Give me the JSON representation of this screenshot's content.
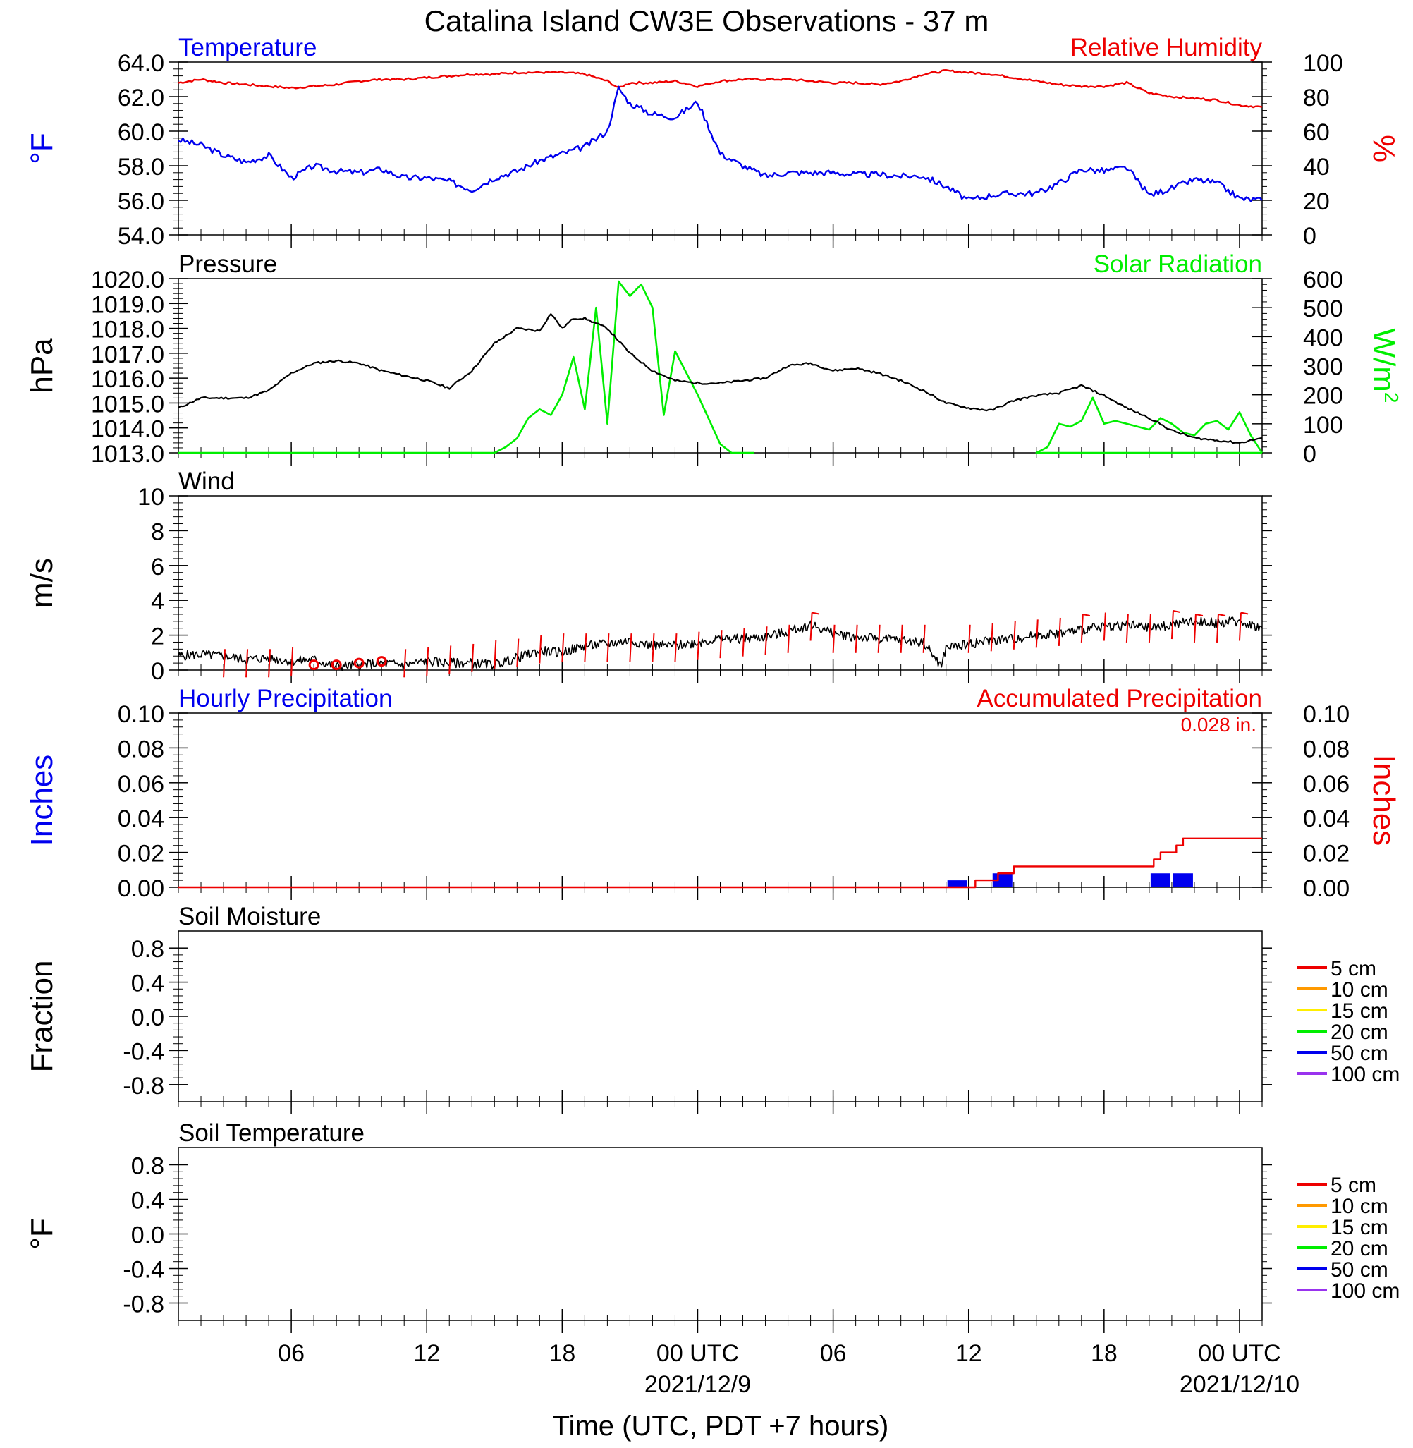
{
  "title": "Catalina Island CW3E Observations - 37 m",
  "xlabel": "Time (UTC, PDT +7 hours)",
  "colors": {
    "temperature": "#0000ee",
    "humidity": "#ee0000",
    "pressure": "#000000",
    "solar": "#00ee00",
    "wind": "#000000",
    "wind_barb": "#ee0000",
    "hourly_precip": "#0000ee",
    "accum_precip": "#ee0000"
  },
  "chart_data": [
    {
      "type": "line",
      "panel": "temperature-humidity",
      "left_title": "Temperature",
      "right_title": "Relative Humidity",
      "ylabel_left": "°F",
      "ylabel_right": "%",
      "ylim_left": [
        54,
        64
      ],
      "ylim_right": [
        0,
        100
      ],
      "yticks_left": [
        "54.0",
        "56.0",
        "58.0",
        "60.0",
        "62.0",
        "64.0"
      ],
      "yticks_right": [
        "0",
        "20",
        "40",
        "60",
        "80",
        "100"
      ],
      "x_hours": [
        0,
        1,
        2,
        3,
        4,
        5,
        6,
        7,
        8,
        9,
        10,
        11,
        12,
        13,
        14,
        15,
        16,
        17,
        18,
        19,
        19.5,
        20,
        21,
        22,
        23,
        24,
        25,
        26,
        27,
        28,
        29,
        30,
        31,
        32,
        33,
        34,
        35,
        36,
        37,
        38,
        39,
        40,
        41,
        42,
        43,
        44,
        45,
        46,
        47,
        48
      ],
      "series": [
        {
          "name": "Temperature",
          "axis": "left",
          "values": [
            59.5,
            59.2,
            58.6,
            58.2,
            58.6,
            57.3,
            58.0,
            57.7,
            57.6,
            57.8,
            57.3,
            57.3,
            57.1,
            56.6,
            57.3,
            57.7,
            58.3,
            58.7,
            59.1,
            60.0,
            62.5,
            61.6,
            61.0,
            60.8,
            61.7,
            58.7,
            58.0,
            57.4,
            57.6,
            57.6,
            57.6,
            57.5,
            57.5,
            57.4,
            57.4,
            56.8,
            56.0,
            56.3,
            56.4,
            56.4,
            57.0,
            57.8,
            57.7,
            57.9,
            56.3,
            56.7,
            57.2,
            57.0,
            56.1,
            56.0
          ]
        },
        {
          "name": "Relative Humidity",
          "axis": "right",
          "values": [
            88,
            90,
            88,
            87,
            86,
            85,
            86,
            87,
            89,
            90,
            90,
            91,
            92,
            93,
            93,
            94,
            94,
            94,
            93,
            89,
            85,
            88,
            88,
            89,
            86,
            89,
            90,
            90,
            90,
            89,
            88,
            88,
            87,
            89,
            93,
            95,
            94,
            93,
            91,
            89,
            87,
            86,
            86,
            88,
            82,
            80,
            79,
            78,
            75,
            74
          ]
        }
      ]
    },
    {
      "type": "line",
      "panel": "pressure-solar",
      "left_title": "Pressure",
      "right_title": "Solar Radiation",
      "ylabel_left": "hPa",
      "ylabel_right_base": "W/m",
      "ylabel_right_sup": "2",
      "ylim_left": [
        1013,
        1020
      ],
      "ylim_right": [
        0,
        600
      ],
      "yticks_left": [
        "1013.0",
        "1014.0",
        "1015.0",
        "1016.0",
        "1017.0",
        "1018.0",
        "1019.0",
        "1020.0"
      ],
      "yticks_right": [
        "0",
        "100",
        "200",
        "300",
        "400",
        "500",
        "600"
      ],
      "series": [
        {
          "name": "Pressure",
          "axis": "left",
          "x_hours": [
            0,
            1,
            2,
            3,
            4,
            5,
            6,
            7,
            8,
            9,
            10,
            11,
            12,
            13,
            14,
            15,
            16,
            16.5,
            17,
            17.5,
            18,
            19,
            20,
            21,
            22,
            23,
            24,
            25,
            26,
            27,
            28,
            29,
            30,
            31,
            32,
            33,
            34,
            35,
            36,
            37,
            38,
            39,
            40,
            41,
            42,
            43,
            44,
            45,
            46,
            47,
            48
          ],
          "values": [
            1014.8,
            1015.2,
            1015.2,
            1015.2,
            1015.5,
            1016.2,
            1016.6,
            1016.7,
            1016.6,
            1016.3,
            1016.1,
            1015.9,
            1015.6,
            1016.3,
            1017.4,
            1018.0,
            1017.9,
            1018.6,
            1018.0,
            1018.4,
            1018.4,
            1018.0,
            1017.0,
            1016.3,
            1015.9,
            1015.8,
            1015.8,
            1015.9,
            1016.0,
            1016.5,
            1016.6,
            1016.3,
            1016.4,
            1016.2,
            1015.9,
            1015.5,
            1015.0,
            1014.8,
            1014.7,
            1015.1,
            1015.3,
            1015.4,
            1015.7,
            1015.3,
            1014.8,
            1014.4,
            1013.9,
            1013.6,
            1013.5,
            1013.4,
            1013.6
          ]
        },
        {
          "name": "Solar Radiation",
          "axis": "right",
          "x_hours": [
            0,
            14,
            14.5,
            15,
            15.5,
            16,
            16.5,
            17,
            17.5,
            18,
            18.5,
            19,
            19.5,
            20,
            20.5,
            21,
            21.5,
            22,
            23,
            24,
            24.5,
            25,
            25.5,
            48.0,
            38,
            38.5,
            39,
            39.5,
            40,
            40.5,
            41,
            41.5,
            42,
            42.5,
            43,
            43.5,
            44,
            44.5,
            45,
            45.5,
            46,
            46.5,
            47,
            47.5,
            48
          ],
          "values": [
            0,
            0,
            20,
            50,
            120,
            150,
            130,
            200,
            330,
            150,
            500,
            100,
            590,
            540,
            580,
            500,
            130,
            350,
            200,
            30,
            0,
            0,
            0,
            0,
            0,
            20,
            100,
            90,
            110,
            190,
            100,
            110,
            100,
            90,
            80,
            120,
            100,
            70,
            60,
            100,
            110,
            80,
            140,
            60,
            0
          ]
        }
      ]
    },
    {
      "type": "line",
      "panel": "wind",
      "left_title": "Wind",
      "ylabel_left": "m/s",
      "ylim_left": [
        0,
        10
      ],
      "yticks_left": [
        "0",
        "2",
        "4",
        "6",
        "8",
        "10"
      ],
      "series": [
        {
          "name": "Wind",
          "x_hours": [
            0,
            1,
            2,
            3,
            4,
            5,
            6,
            7,
            8,
            9,
            10,
            11,
            12,
            13,
            14,
            15,
            16,
            17,
            18,
            19,
            20,
            21,
            22,
            23,
            24,
            25,
            26,
            27,
            28,
            29,
            30,
            31,
            32,
            33,
            33.8,
            34,
            35,
            36,
            37,
            38,
            39,
            40,
            41,
            42,
            43,
            44,
            45,
            46,
            47,
            48
          ],
          "values": [
            0.8,
            0.9,
            0.8,
            0.6,
            0.7,
            0.5,
            0.6,
            0.2,
            0.3,
            0.4,
            0.3,
            0.5,
            0.4,
            0.4,
            0.3,
            0.7,
            1.1,
            1.0,
            1.4,
            1.5,
            1.7,
            1.4,
            1.4,
            1.6,
            1.8,
            1.8,
            1.9,
            2.2,
            2.6,
            2.1,
            1.9,
            1.8,
            1.7,
            1.6,
            0.2,
            1.3,
            1.5,
            1.7,
            1.8,
            2.0,
            2.1,
            2.3,
            2.5,
            2.6,
            2.4,
            2.6,
            2.8,
            2.7,
            2.8,
            2.4
          ]
        },
        {
          "name": "Calm",
          "x_hours": [
            6,
            7,
            8,
            9
          ],
          "values": [
            0.3,
            0.3,
            0.4,
            0.5
          ]
        },
        {
          "name": "Barbs",
          "x_hours": [
            2,
            3,
            4,
            5,
            10,
            11,
            12,
            13,
            14,
            15,
            16,
            17,
            18,
            19,
            20,
            21,
            22,
            23,
            24,
            25,
            26,
            27,
            28,
            29,
            30,
            31,
            32,
            33,
            35,
            36,
            37,
            38,
            39,
            40,
            41,
            42,
            43,
            44,
            45,
            46,
            47
          ],
          "values": [
            1.2,
            1.2,
            1.2,
            1.3,
            1.2,
            1.3,
            1.4,
            1.5,
            1.7,
            1.8,
            2.0,
            2.1,
            2.1,
            2.1,
            2.1,
            2.1,
            2.1,
            2.2,
            2.3,
            2.4,
            2.5,
            2.6,
            3.3,
            2.6,
            2.6,
            2.6,
            2.6,
            2.6,
            2.6,
            2.7,
            2.8,
            2.9,
            3.0,
            3.2,
            3.3,
            3.2,
            3.2,
            3.4,
            3.2,
            3.2,
            3.3
          ],
          "flags": [
            28,
            40,
            44,
            45,
            46,
            47
          ]
        }
      ]
    },
    {
      "type": "bar",
      "panel": "precipitation",
      "left_title": "Hourly Precipitation",
      "right_title": "Accumulated Precipitation",
      "annotation": "0.028 in.",
      "ylabel_left": "Inches",
      "ylabel_right": "Inches",
      "ylim_left": [
        0,
        0.1
      ],
      "ylim_right": [
        0,
        0.1
      ],
      "yticks_left": [
        "0.00",
        "0.02",
        "0.04",
        "0.06",
        "0.08",
        "0.10"
      ],
      "yticks_right": [
        "0.00",
        "0.02",
        "0.04",
        "0.06",
        "0.08",
        "0.10"
      ],
      "series": [
        {
          "name": "Hourly Precipitation",
          "x_hours": [
            34,
            36,
            43,
            44
          ],
          "values": [
            0.004,
            0.008,
            0.008,
            0.008
          ]
        },
        {
          "name": "Accumulated Precipitation",
          "x_hours": [
            0,
            34,
            35.3,
            36,
            36.3,
            36.6,
            37,
            43,
            43.2,
            43.5,
            44,
            44.2,
            44.5,
            48
          ],
          "values": [
            0,
            0,
            0.004,
            0.004,
            0.008,
            0.008,
            0.012,
            0.012,
            0.016,
            0.02,
            0.02,
            0.024,
            0.028,
            0.028
          ]
        }
      ]
    },
    {
      "type": "line",
      "panel": "soil-moisture",
      "left_title": "Soil Moisture",
      "ylabel_left": "Fraction",
      "ylim_left": [
        -1,
        1
      ],
      "yticks_left": [
        "-0.8",
        "-0.4",
        "0.0",
        "0.4",
        "0.8"
      ],
      "legend": [
        "5 cm",
        "10 cm",
        "15 cm",
        "20 cm",
        "50 cm",
        "100 cm"
      ],
      "legend_colors": [
        "#ee0000",
        "#ff9900",
        "#ffee00",
        "#00ee00",
        "#0000ee",
        "#9933ee"
      ],
      "series": []
    },
    {
      "type": "line",
      "panel": "soil-temperature",
      "left_title": "Soil Temperature",
      "ylabel_left": "°F",
      "ylim_left": [
        -1,
        1
      ],
      "yticks_left": [
        "-0.8",
        "-0.4",
        "0.0",
        "0.4",
        "0.8"
      ],
      "legend": [
        "5 cm",
        "10 cm",
        "15 cm",
        "20 cm",
        "50 cm",
        "100 cm"
      ],
      "legend_colors": [
        "#ee0000",
        "#ff9900",
        "#ffee00",
        "#00ee00",
        "#0000ee",
        "#9933ee"
      ],
      "series": []
    }
  ],
  "x_axis": {
    "range_hours": [
      0,
      48
    ],
    "ticks": [
      {
        "hour": 5,
        "label": "06",
        "date": ""
      },
      {
        "hour": 11,
        "label": "12",
        "date": ""
      },
      {
        "hour": 17,
        "label": "18",
        "date": ""
      },
      {
        "hour": 23,
        "label": "00 UTC",
        "date": "2021/12/9"
      },
      {
        "hour": 29,
        "label": "06",
        "date": ""
      },
      {
        "hour": 35,
        "label": "12",
        "date": ""
      },
      {
        "hour": 41,
        "label": "18",
        "date": ""
      },
      {
        "hour": 47,
        "label": "00 UTC",
        "date": "2021/12/10"
      }
    ]
  }
}
